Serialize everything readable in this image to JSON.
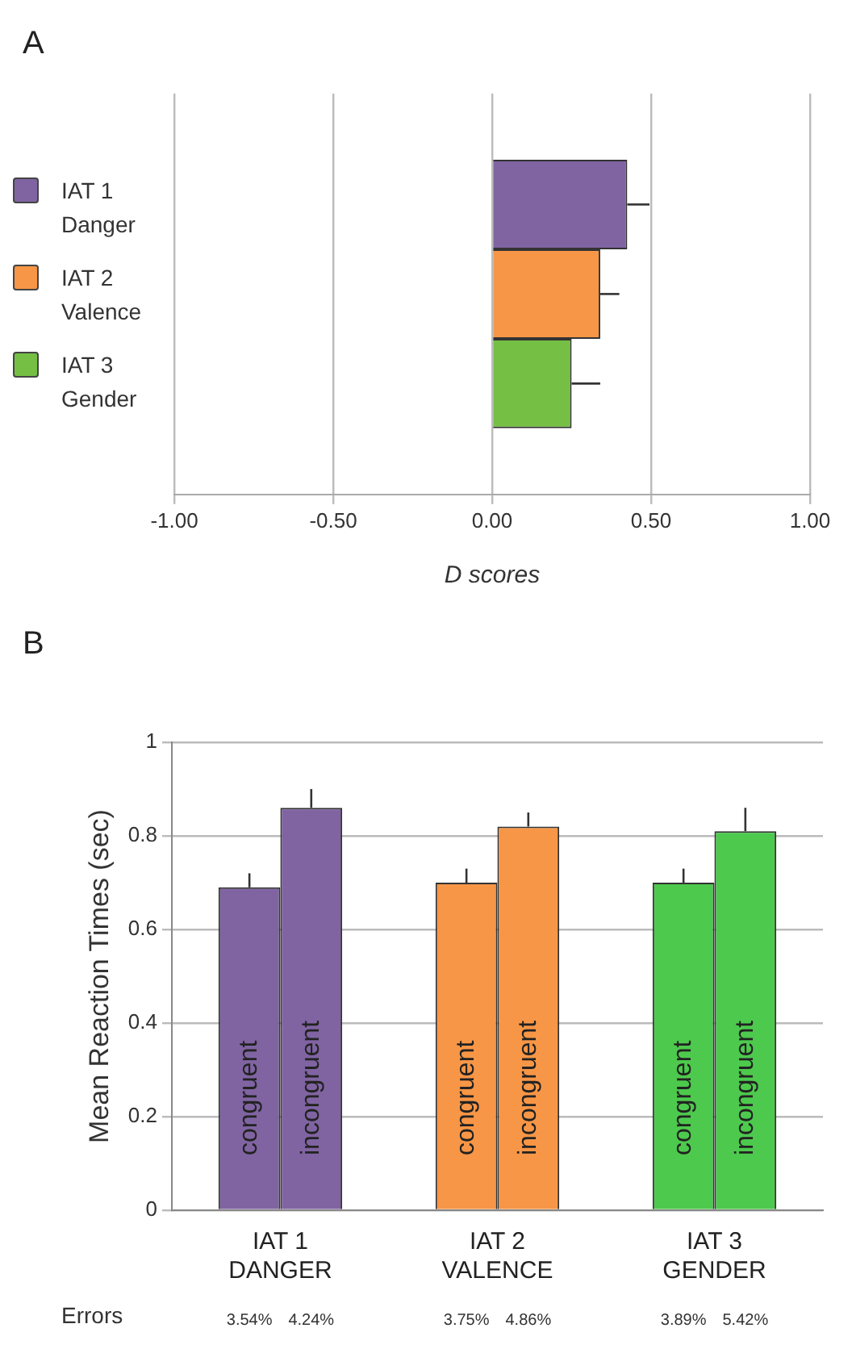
{
  "chart_data": [
    {
      "type": "bar",
      "title": "A",
      "orientation": "horizontal",
      "categories": [
        null
      ],
      "xlabel": "D scores",
      "series": [
        {
          "name": "IAT 1 Danger",
          "color": "#8064a2",
          "values": [
            0.425
          ],
          "errors": [
            0.07
          ]
        },
        {
          "name": "IAT 2 Valence",
          "color": "#f79646",
          "values": [
            0.34
          ],
          "errors": [
            0.06
          ]
        },
        {
          "name": "IAT 3 Gender",
          "color": "#74bf44",
          "values": [
            0.25
          ],
          "errors": [
            0.09
          ]
        }
      ],
      "xlim": [
        -1,
        1
      ],
      "xticks": [
        {
          "value": -1,
          "label": "-1.00"
        },
        {
          "value": -0.5,
          "label": "-0.50"
        },
        {
          "value": 0,
          "label": "0.00"
        },
        {
          "value": 0.5,
          "label": "0.50"
        },
        {
          "value": 1,
          "label": "1.00"
        }
      ],
      "grid": "x",
      "legend": "left"
    },
    {
      "type": "bar",
      "title": "B",
      "categories": [
        "IAT 1\nDANGER",
        "IAT 2\nVALENCE",
        "IAT 3\nGENDER"
      ],
      "ylabel": "Mean Reaction Times (sec)",
      "series": [
        {
          "name": "congruent",
          "colors": [
            "#8064a2",
            "#f79646",
            "#4dc94d"
          ],
          "values": [
            0.69,
            0.7,
            0.7
          ],
          "errors": [
            0.03,
            0.03,
            0.03
          ]
        },
        {
          "name": "incongruent",
          "colors": [
            "#8064a2",
            "#f79646",
            "#4dc94d"
          ],
          "values": [
            0.86,
            0.82,
            0.81
          ],
          "errors": [
            0.04,
            0.03,
            0.05
          ]
        }
      ],
      "ylim": [
        0,
        1
      ],
      "yticks": [
        0,
        0.2,
        0.4,
        0.6,
        0.8,
        1
      ],
      "grid": "y",
      "annotations": [
        "Errors",
        "3.54%",
        "4.24%",
        "3.75%",
        "4.86%",
        "3.89%",
        "5.42%"
      ]
    }
  ]
}
